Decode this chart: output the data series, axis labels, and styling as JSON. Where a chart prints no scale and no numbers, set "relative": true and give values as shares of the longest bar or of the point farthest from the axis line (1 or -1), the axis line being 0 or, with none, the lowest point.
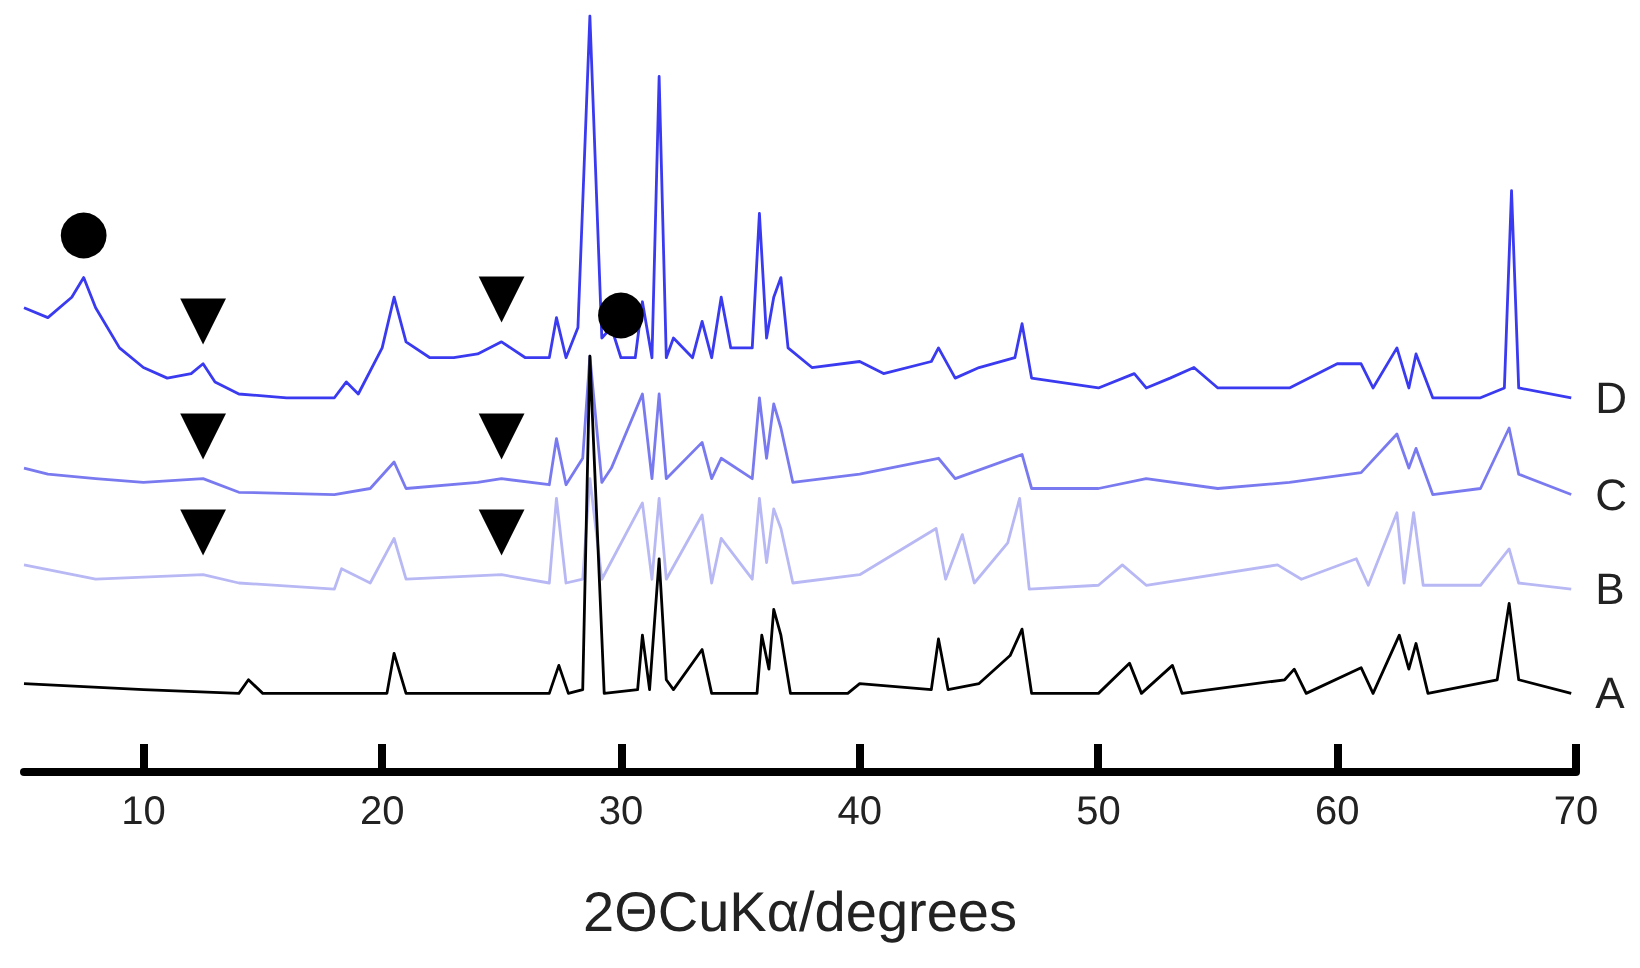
{
  "chart_data": {
    "type": "line",
    "relative": true,
    "xlabel": "2ΘCuKα/degrees",
    "xlim": [
      5,
      70
    ],
    "xticks": [
      10,
      20,
      30,
      40,
      50,
      60,
      70
    ],
    "grid": false,
    "legend": false,
    "marker": "none",
    "line_style": "solid",
    "series": [
      {
        "name": "D",
        "color": "#3a3af0",
        "x": [
          5,
          6,
          7,
          7.5,
          8,
          9,
          10,
          11,
          12,
          12.5,
          13,
          14,
          16,
          18,
          18.5,
          19,
          20,
          20.5,
          21,
          22,
          23,
          24,
          25,
          26,
          27,
          27.3,
          27.7,
          28.2,
          28.7,
          29.2,
          29.6,
          30,
          30.6,
          30.9,
          31.3,
          31.6,
          31.9,
          32.2,
          33,
          33.4,
          33.8,
          34.2,
          34.6,
          35.5,
          35.8,
          36.1,
          36.4,
          36.7,
          37,
          38,
          40,
          41,
          43,
          43.3,
          44,
          45,
          46.5,
          46.8,
          47.2,
          50,
          51.5,
          52,
          53,
          54,
          55,
          58,
          60,
          61,
          61.5,
          62.5,
          63,
          63.3,
          64,
          66,
          67,
          67.3,
          67.6,
          69.8
        ],
        "values": [
          0.614,
          0.601,
          0.628,
          0.654,
          0.614,
          0.561,
          0.535,
          0.521,
          0.527,
          0.54,
          0.516,
          0.5,
          0.495,
          0.495,
          0.516,
          0.5,
          0.561,
          0.628,
          0.569,
          0.548,
          0.548,
          0.553,
          0.569,
          0.548,
          0.548,
          0.601,
          0.548,
          0.588,
          1.0,
          0.574,
          0.588,
          0.548,
          0.548,
          0.622,
          0.548,
          0.92,
          0.548,
          0.574,
          0.548,
          0.596,
          0.548,
          0.628,
          0.561,
          0.561,
          0.739,
          0.574,
          0.628,
          0.654,
          0.561,
          0.535,
          0.543,
          0.527,
          0.543,
          0.561,
          0.521,
          0.535,
          0.548,
          0.593,
          0.521,
          0.508,
          0.527,
          0.508,
          0.521,
          0.535,
          0.508,
          0.508,
          0.54,
          0.54,
          0.508,
          0.561,
          0.508,
          0.553,
          0.495,
          0.495,
          0.508,
          0.769,
          0.508,
          0.495
        ]
      },
      {
        "name": "C",
        "color": "#7a7af0",
        "x": [
          5,
          6,
          8,
          10,
          12.5,
          14,
          18,
          19.5,
          20.5,
          21,
          24,
          25,
          27,
          27.3,
          27.7,
          28.4,
          28.7,
          29.2,
          29.6,
          30.9,
          31.3,
          31.6,
          31.9,
          33.4,
          33.8,
          34.2,
          35.5,
          35.8,
          36.1,
          36.4,
          36.7,
          37.2,
          40,
          43.3,
          44,
          46.8,
          47.2,
          50,
          52,
          55,
          58,
          61,
          62.5,
          63,
          63.3,
          64,
          66,
          67.2,
          67.6,
          69.8
        ],
        "values": [
          0.402,
          0.394,
          0.388,
          0.383,
          0.388,
          0.37,
          0.367,
          0.375,
          0.41,
          0.375,
          0.383,
          0.388,
          0.38,
          0.441,
          0.38,
          0.415,
          0.55,
          0.383,
          0.402,
          0.5,
          0.388,
          0.5,
          0.388,
          0.436,
          0.388,
          0.415,
          0.388,
          0.495,
          0.415,
          0.487,
          0.455,
          0.383,
          0.394,
          0.415,
          0.388,
          0.42,
          0.375,
          0.375,
          0.388,
          0.375,
          0.383,
          0.396,
          0.447,
          0.402,
          0.428,
          0.367,
          0.375,
          0.455,
          0.394,
          0.367
        ]
      },
      {
        "name": "B",
        "color": "#b8b8f5",
        "x": [
          5,
          8,
          12.5,
          14,
          18,
          18.3,
          19.5,
          20.5,
          21,
          25,
          27,
          27.3,
          27.7,
          28.4,
          28.7,
          29.2,
          30.9,
          31.3,
          31.6,
          31.9,
          33.4,
          33.8,
          34.2,
          35.5,
          35.8,
          36.1,
          36.4,
          36.7,
          37.2,
          40,
          43.2,
          43.6,
          44.3,
          44.8,
          46.2,
          46.7,
          47.1,
          50,
          51,
          52,
          57.5,
          58.5,
          60.8,
          61.3,
          62.5,
          62.8,
          63.2,
          63.6,
          66,
          67.2,
          67.6,
          69.8
        ],
        "values": [
          0.274,
          0.255,
          0.261,
          0.25,
          0.242,
          0.269,
          0.25,
          0.309,
          0.255,
          0.261,
          0.25,
          0.362,
          0.25,
          0.255,
          0.388,
          0.255,
          0.356,
          0.255,
          0.362,
          0.255,
          0.34,
          0.25,
          0.309,
          0.255,
          0.362,
          0.277,
          0.348,
          0.322,
          0.25,
          0.261,
          0.322,
          0.255,
          0.314,
          0.25,
          0.303,
          0.362,
          0.242,
          0.247,
          0.274,
          0.247,
          0.274,
          0.255,
          0.282,
          0.247,
          0.343,
          0.25,
          0.343,
          0.247,
          0.247,
          0.295,
          0.25,
          0.242
        ]
      },
      {
        "name": "A",
        "color": "#000000",
        "x": [
          5,
          10,
          14,
          14.4,
          15,
          19,
          20.2,
          20.5,
          21,
          27,
          27.4,
          27.8,
          28.4,
          28.7,
          29.3,
          30.7,
          30.9,
          31.2,
          31.6,
          31.9,
          32.2,
          33.4,
          33.8,
          35.7,
          35.9,
          36.2,
          36.4,
          36.7,
          37.1,
          39.5,
          40,
          43,
          43.3,
          43.7,
          45,
          46.3,
          46.8,
          47.2,
          50,
          51.3,
          51.8,
          53.1,
          53.5,
          57.8,
          58.2,
          58.7,
          61,
          61.5,
          62.6,
          63,
          63.3,
          63.8,
          66.7,
          67.2,
          67.6,
          69.8
        ],
        "values": [
          0.117,
          0.109,
          0.104,
          0.122,
          0.104,
          0.104,
          0.104,
          0.157,
          0.104,
          0.104,
          0.141,
          0.104,
          0.109,
          0.55,
          0.104,
          0.109,
          0.181,
          0.109,
          0.282,
          0.122,
          0.109,
          0.162,
          0.104,
          0.104,
          0.181,
          0.136,
          0.215,
          0.181,
          0.104,
          0.104,
          0.117,
          0.109,
          0.176,
          0.109,
          0.117,
          0.154,
          0.189,
          0.104,
          0.104,
          0.144,
          0.104,
          0.141,
          0.104,
          0.122,
          0.136,
          0.104,
          0.138,
          0.104,
          0.181,
          0.136,
          0.17,
          0.104,
          0.122,
          0.223,
          0.122,
          0.104
        ]
      }
    ],
    "annotations": [
      {
        "text": "●",
        "x": 7.5,
        "y": 0.654
      },
      {
        "text": "●",
        "x": 30,
        "y": 0.548
      },
      {
        "text": "▼",
        "x": 12.5,
        "y": 0.54
      },
      {
        "text": "▼",
        "x": 25,
        "y": 0.569
      },
      {
        "text": "▼",
        "x": 12.5,
        "y": 0.388
      },
      {
        "text": "▼",
        "x": 25,
        "y": 0.388
      },
      {
        "text": "▼",
        "x": 12.5,
        "y": 0.261
      },
      {
        "text": "▼",
        "x": 25,
        "y": 0.261
      }
    ]
  }
}
